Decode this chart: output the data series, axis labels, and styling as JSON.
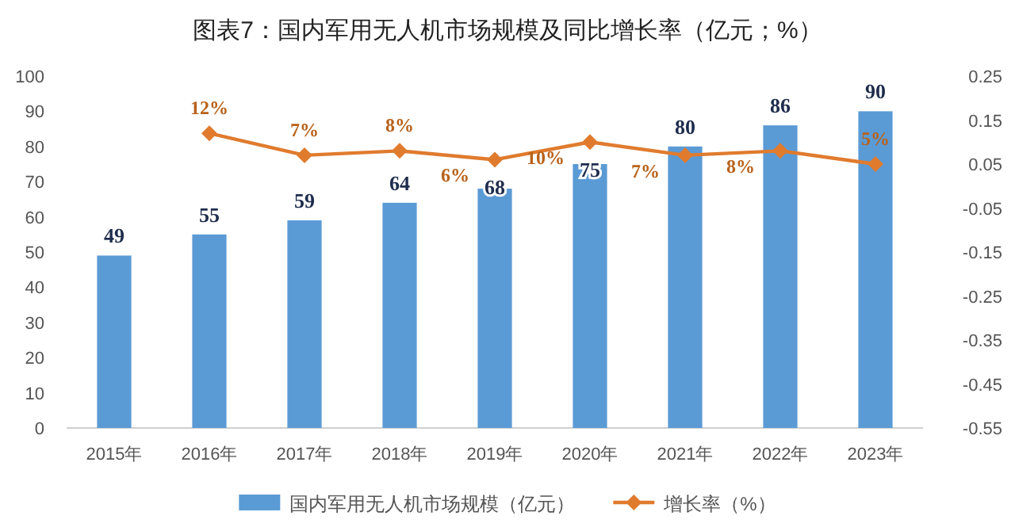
{
  "chart_data": {
    "type": "bar",
    "title": "图表7：国内军用无人机市场规模及同比增长率（亿元；%）",
    "categories": [
      "2015年",
      "2016年",
      "2017年",
      "2018年",
      "2019年",
      "2020年",
      "2021年",
      "2022年",
      "2023年"
    ],
    "series": [
      {
        "name": "国内军用无人机市场规模（亿元）",
        "color": "#5b9bd5",
        "values": [
          49,
          55,
          59,
          64,
          68,
          75,
          80,
          86,
          90
        ],
        "value_labels": [
          "49",
          "55",
          "59",
          "64",
          "68",
          "75",
          "80",
          "86",
          "90"
        ]
      },
      {
        "name": "增长率（%）",
        "type": "line",
        "axis": "y2",
        "color": "#e07b2e",
        "values": [
          null,
          0.12,
          0.07,
          0.08,
          0.06,
          0.1,
          0.07,
          0.08,
          0.05
        ],
        "value_labels": [
          null,
          "12%",
          "7%",
          "8%",
          "6%",
          "10%",
          "7%",
          "8%",
          "5%"
        ]
      }
    ],
    "ylim": [
      0,
      100
    ],
    "yticks": [
      0,
      10,
      20,
      30,
      40,
      50,
      60,
      70,
      80,
      90,
      100
    ],
    "y2lim": [
      -0.55,
      0.25
    ],
    "y2ticks": [
      -0.55,
      -0.45,
      -0.35,
      -0.25,
      -0.15,
      -0.05,
      0.05,
      0.15,
      0.25
    ],
    "marker": "diamond",
    "legend": "bottom"
  }
}
